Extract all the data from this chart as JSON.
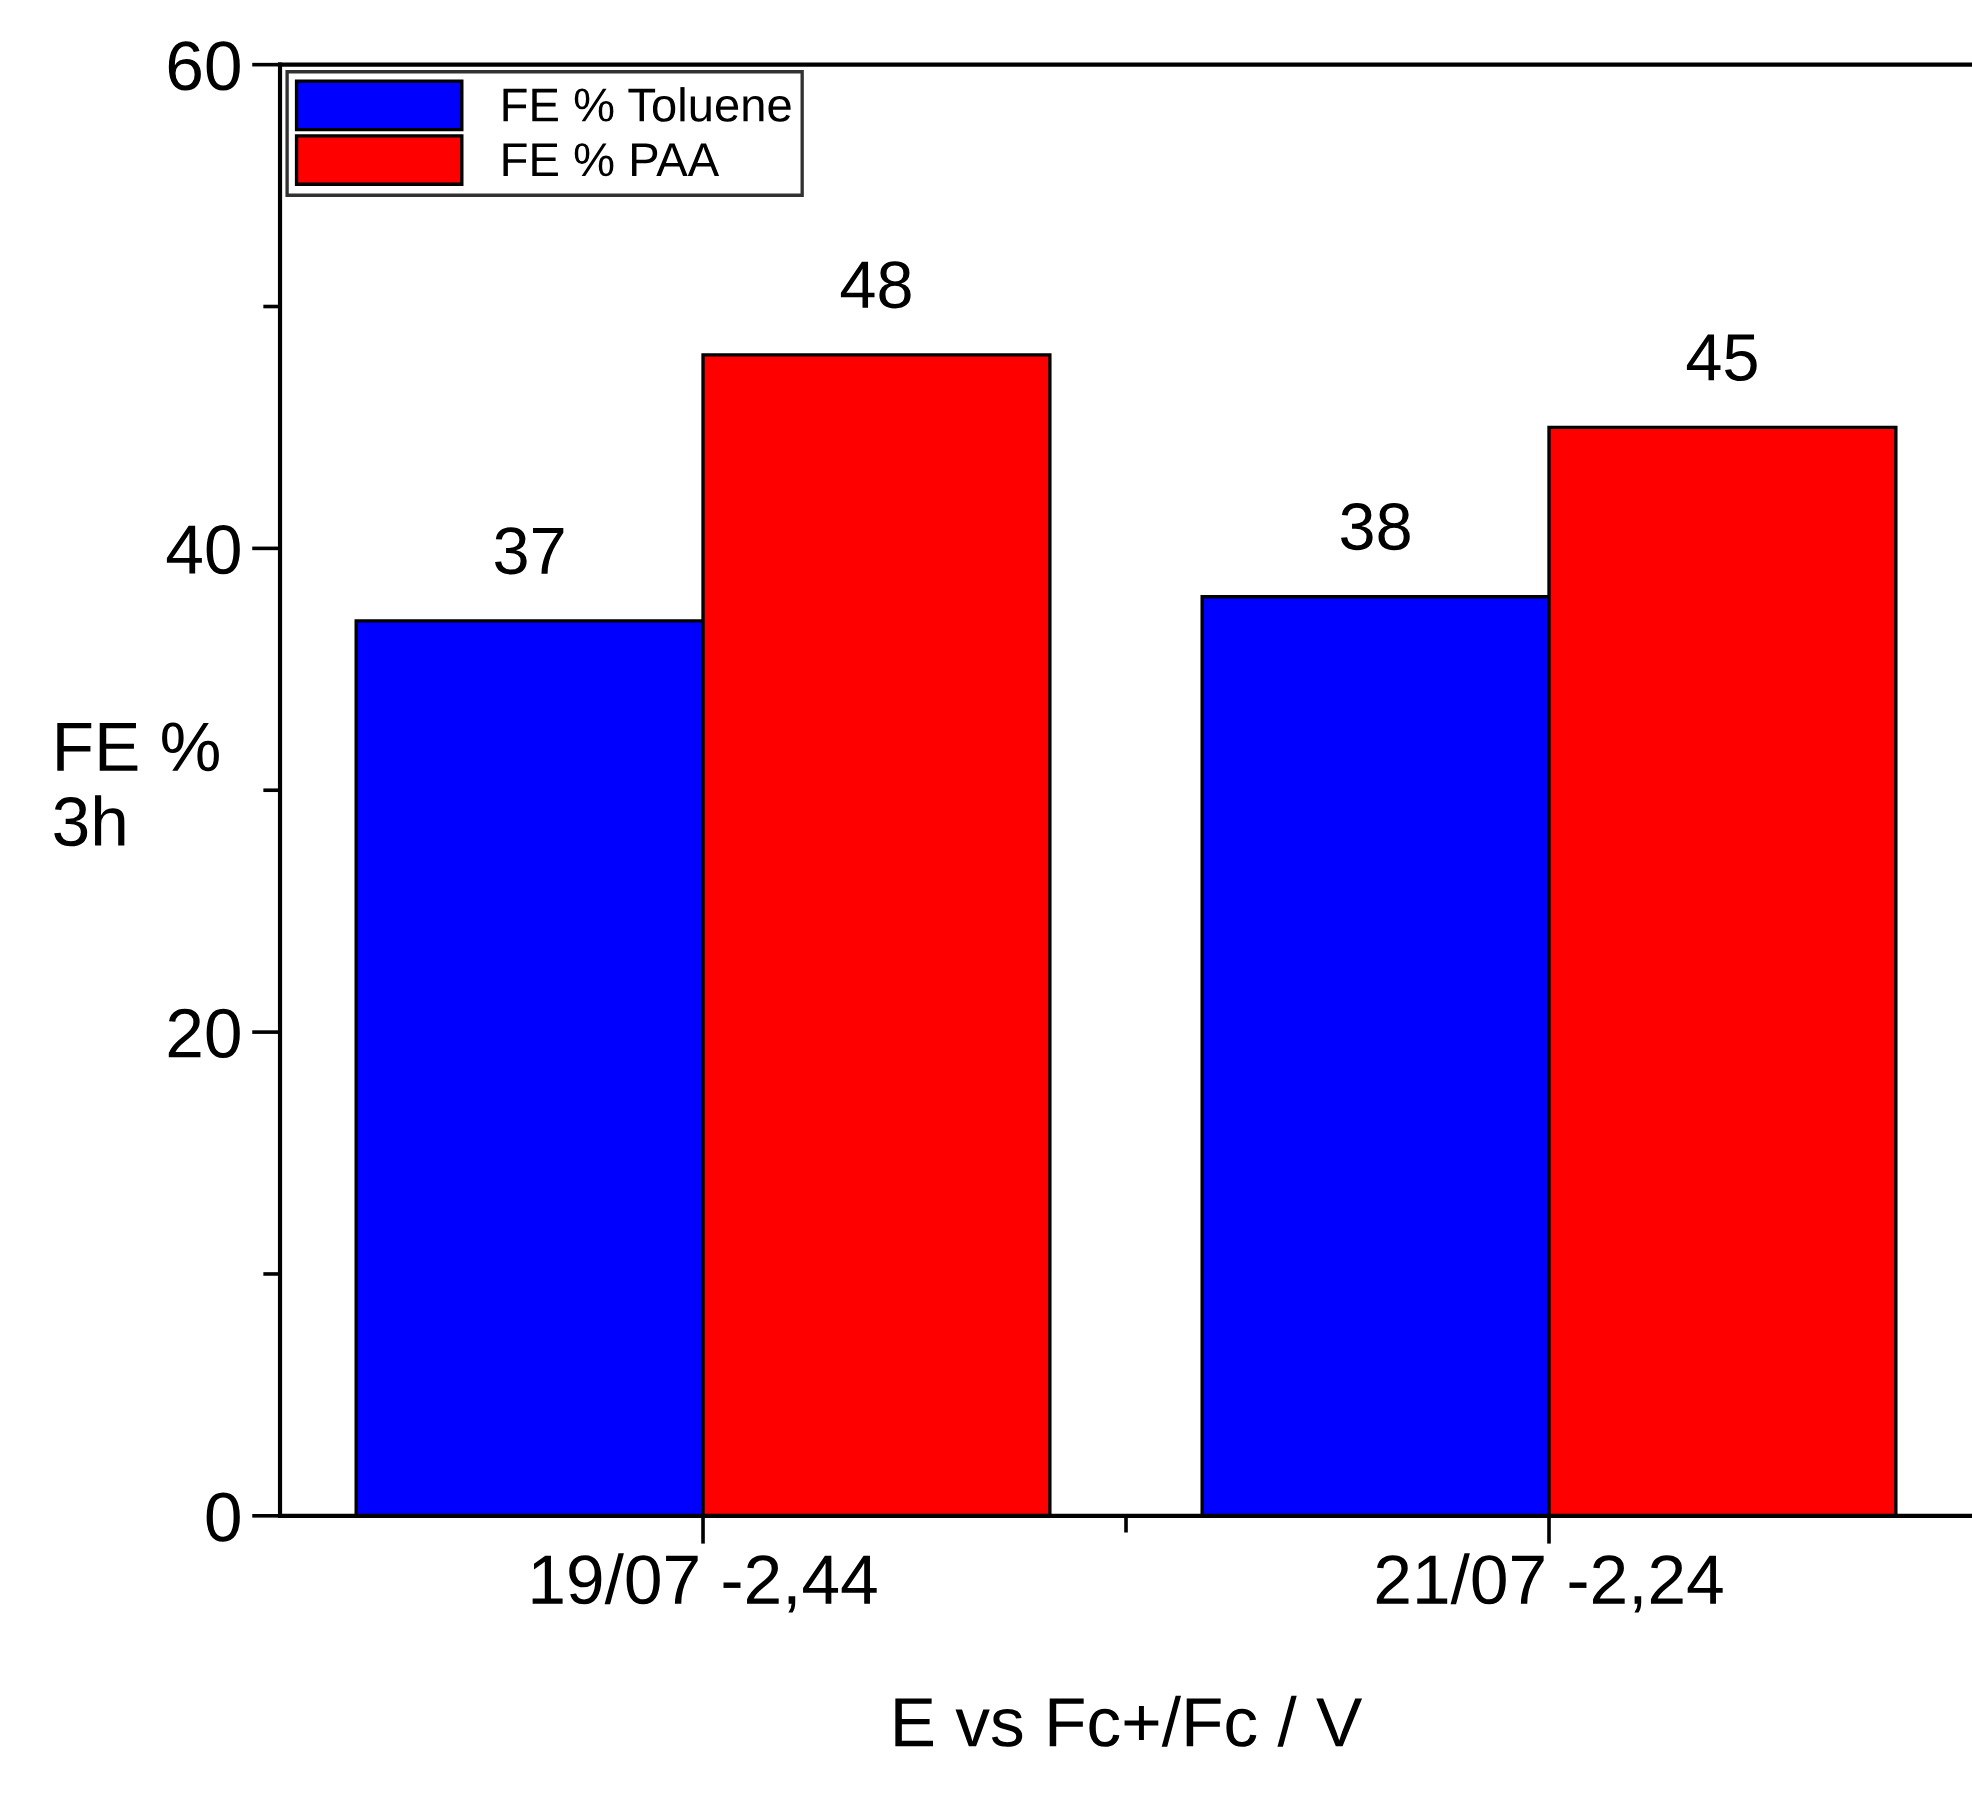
{
  "chart_data": {
    "type": "bar",
    "xlabel": "E vs Fc+/Fc / V",
    "ylabel": "FE %\n3h",
    "categories": [
      "19/07 -2,44",
      "21/07 -2,24"
    ],
    "series": [
      {
        "name": "FE % Toluene",
        "color": "#0000ff",
        "values": [
          37,
          38
        ]
      },
      {
        "name": "FE % PAA",
        "color": "#ff0000",
        "values": [
          48,
          45
        ]
      }
    ],
    "ylim": [
      0,
      60
    ],
    "yticks": [
      0,
      20,
      40,
      60
    ],
    "data_labels": true,
    "legend": "top left",
    "grid": false
  }
}
